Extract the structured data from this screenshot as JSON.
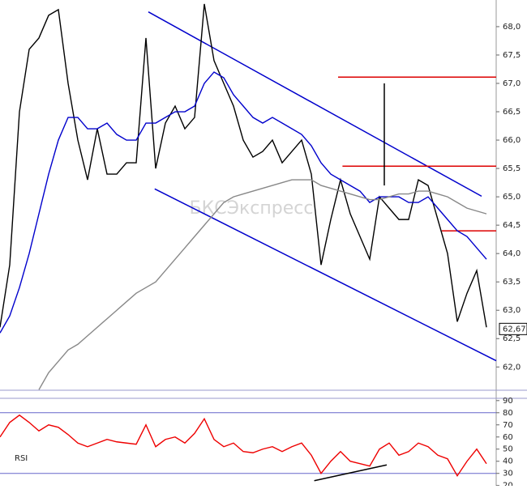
{
  "chart_data": [
    {
      "type": "line",
      "watermark": "БКСЭкспресс",
      "ylim": [
        61.59,
        68.47
      ],
      "yticks": [
        {
          "value": 62,
          "label": "62,0"
        },
        {
          "value": 62.5,
          "label": "62,5"
        },
        {
          "value": 63,
          "label": "63,0"
        },
        {
          "value": 63.5,
          "label": "63,5"
        },
        {
          "value": 64,
          "label": "64,0"
        },
        {
          "value": 64.5,
          "label": "64,5"
        },
        {
          "value": 65,
          "label": "65,0"
        },
        {
          "value": 65.5,
          "label": "65,5"
        },
        {
          "value": 66,
          "label": "66,0"
        },
        {
          "value": 66.5,
          "label": "66,5"
        },
        {
          "value": 67,
          "label": "67,0"
        },
        {
          "value": 67.5,
          "label": "67,5"
        },
        {
          "value": 68,
          "label": "68,0"
        }
      ],
      "series": [
        {
          "color": "#000000",
          "values": [
            62.7,
            63.8,
            66.5,
            67.6,
            67.8,
            68.2,
            68.3,
            67.0,
            66.0,
            65.3,
            66.2,
            65.4,
            65.4,
            65.6,
            65.6,
            67.8,
            65.5,
            66.3,
            66.6,
            66.2,
            66.4,
            68.4,
            67.4,
            67.0,
            66.6,
            66.0,
            65.7,
            65.8,
            66.0,
            65.6,
            65.8,
            66.0,
            65.4,
            63.8,
            64.6,
            65.3,
            64.7,
            64.3,
            63.9,
            65.0,
            64.8,
            64.6,
            64.6,
            65.3,
            65.2,
            64.6,
            64.0,
            62.8,
            63.3,
            63.7,
            62.7
          ]
        },
        {
          "color": "#0000cc",
          "values": [
            62.6,
            62.9,
            63.4,
            64.0,
            64.7,
            65.4,
            66.0,
            66.4,
            66.4,
            66.2,
            66.2,
            66.3,
            66.1,
            66.0,
            66.0,
            66.3,
            66.3,
            66.4,
            66.5,
            66.5,
            66.6,
            67.0,
            67.2,
            67.1,
            66.8,
            66.6,
            66.4,
            66.3,
            66.4,
            66.3,
            66.2,
            66.1,
            65.9,
            65.6,
            65.4,
            65.3,
            65.2,
            65.1,
            64.9,
            65.0,
            65.0,
            65.0,
            64.9,
            64.9,
            65.0,
            64.8,
            64.6,
            64.4,
            64.3,
            64.1,
            63.9
          ]
        },
        {
          "color": "#888888",
          "values": [
            null,
            null,
            null,
            null,
            61.6,
            61.9,
            62.1,
            62.3,
            62.4,
            62.55,
            62.7,
            62.85,
            63.0,
            63.15,
            63.3,
            63.4,
            63.5,
            63.7,
            63.9,
            64.1,
            64.3,
            64.5,
            64.7,
            64.9,
            65.0,
            65.05,
            65.1,
            65.15,
            65.2,
            65.25,
            65.3,
            65.3,
            65.3,
            65.2,
            65.15,
            65.1,
            65.05,
            65.0,
            64.95,
            64.95,
            65.0,
            65.05,
            65.05,
            65.1,
            65.1,
            65.05,
            65.0,
            64.9,
            64.8,
            64.75,
            64.7
          ]
        }
      ],
      "trend_lines": [
        {
          "color": "#0000cc",
          "x": [
            15.25,
            49.5
          ],
          "y": [
            68.26,
            65.01
          ]
        },
        {
          "color": "#0000cc",
          "x": [
            15.9,
            51
          ],
          "y": [
            65.14,
            62.11
          ]
        },
        {
          "color": "#dd0000",
          "x": [
            34.75,
            51
          ],
          "y": [
            67.11,
            67.11
          ]
        },
        {
          "color": "#dd0000",
          "x": [
            35.2,
            51
          ],
          "y": [
            65.54,
            65.54
          ]
        },
        {
          "color": "#dd0000",
          "x": [
            45.4,
            51
          ],
          "y": [
            64.4,
            64.4
          ]
        },
        {
          "color": "#000000",
          "x": [
            39.5,
            39.5
          ],
          "y": [
            67.0,
            65.2
          ]
        }
      ],
      "last_price": {
        "value": 62.67,
        "label": "62,67"
      }
    },
    {
      "type": "line",
      "title": "RSI",
      "ylim": [
        19.8,
        91.2
      ],
      "yticks": [
        20,
        30,
        40,
        50,
        60,
        70,
        80,
        90
      ],
      "levels": [
        80,
        30
      ],
      "series": [
        {
          "color": "#ee0000",
          "values": [
            60,
            72,
            78,
            72,
            65,
            70,
            68,
            62,
            55,
            52,
            55,
            58,
            56,
            55,
            54,
            70,
            52,
            58,
            60,
            55,
            63,
            75,
            58,
            52,
            55,
            48,
            47,
            50,
            52,
            48,
            52,
            55,
            45,
            30,
            40,
            48,
            40,
            38,
            36,
            50,
            55,
            45,
            48,
            55,
            52,
            45,
            42,
            28,
            40,
            50,
            38
          ]
        }
      ],
      "trend_lines": [
        {
          "color": "#000000",
          "x": [
            32.3,
            39.75
          ],
          "y": [
            24,
            37
          ]
        }
      ]
    }
  ]
}
